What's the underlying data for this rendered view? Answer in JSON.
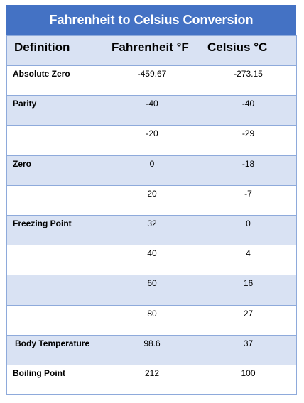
{
  "title": "Fahrenheit to Celsius Conversion",
  "headers": {
    "definition": "Definition",
    "fahrenheit": "Fahrenheit °F",
    "celsius": "Celsius °C"
  },
  "rows": [
    {
      "definition": "Absolute Zero",
      "fahrenheit": "-459.67",
      "celsius": "-273.15"
    },
    {
      "definition": "Parity",
      "fahrenheit": "-40",
      "celsius": "-40"
    },
    {
      "definition": "",
      "fahrenheit": "-20",
      "celsius": "-29"
    },
    {
      "definition": "Zero",
      "fahrenheit": "0",
      "celsius": "-18"
    },
    {
      "definition": "",
      "fahrenheit": "20",
      "celsius": "-7"
    },
    {
      "definition": "Freezing Point",
      "fahrenheit": "32",
      "celsius": "0"
    },
    {
      "definition": "",
      "fahrenheit": "40",
      "celsius": "4"
    },
    {
      "definition": "",
      "fahrenheit": "60",
      "celsius": "16"
    },
    {
      "definition": "",
      "fahrenheit": "80",
      "celsius": "27"
    },
    {
      "definition": "Body Temperature",
      "fahrenheit": "98.6",
      "celsius": "37"
    },
    {
      "definition": "Boiling Point",
      "fahrenheit": "212",
      "celsius": "100"
    }
  ],
  "colors": {
    "title_background": "#4472c4",
    "title_text": "#ffffff",
    "band": "#d9e2f3",
    "border": "#8eaadb"
  }
}
